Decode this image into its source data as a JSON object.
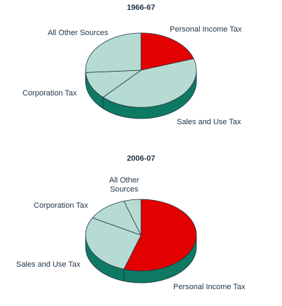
{
  "chart_data": [
    {
      "type": "pie",
      "title": "1966-67",
      "categories": [
        "Personal Income Tax",
        "Sales and Use Tax",
        "Corporation Tax",
        "All Other Sources"
      ],
      "values": [
        20,
        42,
        12,
        26
      ],
      "labels": [
        {
          "lines": [
            "Personal Income Tax"
          ]
        },
        {
          "lines": [
            "Sales and Use Tax"
          ]
        },
        {
          "lines": [
            "Corporation Tax"
          ]
        },
        {
          "lines": [
            "All Other Sources"
          ]
        }
      ],
      "colors": [
        "#e30000",
        "#b6dbd3",
        "#b6dbd3",
        "#b6dbd3"
      ],
      "side_color": "#0e7a63",
      "style": "3d"
    },
    {
      "type": "pie",
      "title": "2006-07",
      "categories": [
        "Personal Income Tax",
        "Sales and Use Tax",
        "Corporation Tax",
        "All Other Sources"
      ],
      "values": [
        55,
        28,
        12,
        5
      ],
      "labels": [
        {
          "lines": [
            "Personal Income Tax"
          ]
        },
        {
          "lines": [
            "Sales and Use Tax"
          ]
        },
        {
          "lines": [
            "Corporation Tax"
          ]
        },
        {
          "lines": [
            "All Other",
            "Sources"
          ]
        }
      ],
      "colors": [
        "#e30000",
        "#b6dbd3",
        "#b6dbd3",
        "#b6dbd3"
      ],
      "side_color": "#0e7a63",
      "style": "3d"
    }
  ]
}
